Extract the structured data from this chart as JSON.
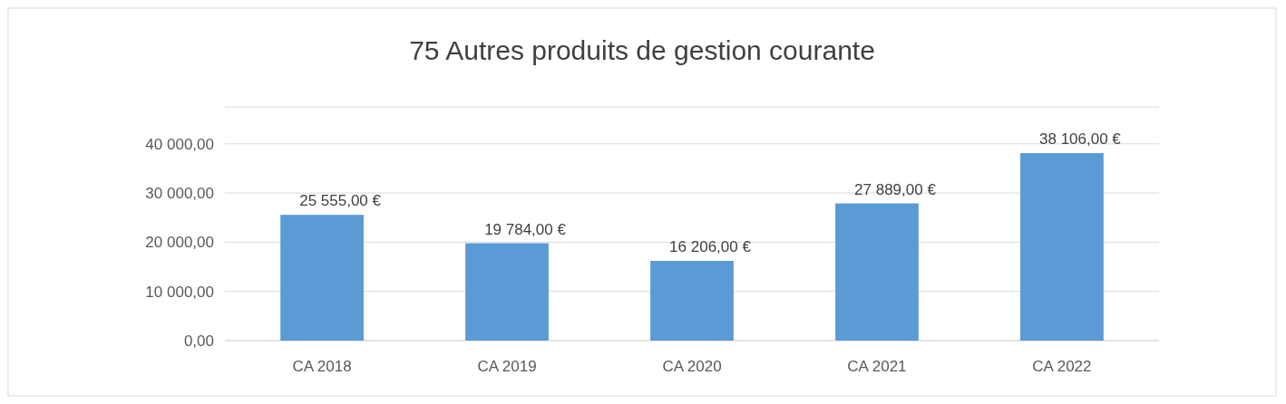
{
  "chart_data": {
    "type": "bar",
    "title": "75 Autres produits de gestion courante",
    "categories": [
      "CA 2018",
      "CA 2019",
      "CA 2020",
      "CA 2021",
      "CA 2022"
    ],
    "values": [
      25555,
      19784,
      16206,
      27889,
      38106
    ],
    "value_labels": [
      "25 555,00 €",
      "19 784,00 €",
      "16 206,00 €",
      "27 889,00 €",
      "38 106,00 €"
    ],
    "color": "#5b9bd5",
    "ylim": [
      0,
      47500
    ],
    "yticks": [
      {
        "value": 0,
        "label": "0,00"
      },
      {
        "value": 10000,
        "label": "10 000,00"
      },
      {
        "value": 20000,
        "label": "20 000,00"
      },
      {
        "value": 30000,
        "label": "30 000,00"
      },
      {
        "value": 40000,
        "label": "40 000,00"
      }
    ],
    "grid": "y"
  }
}
